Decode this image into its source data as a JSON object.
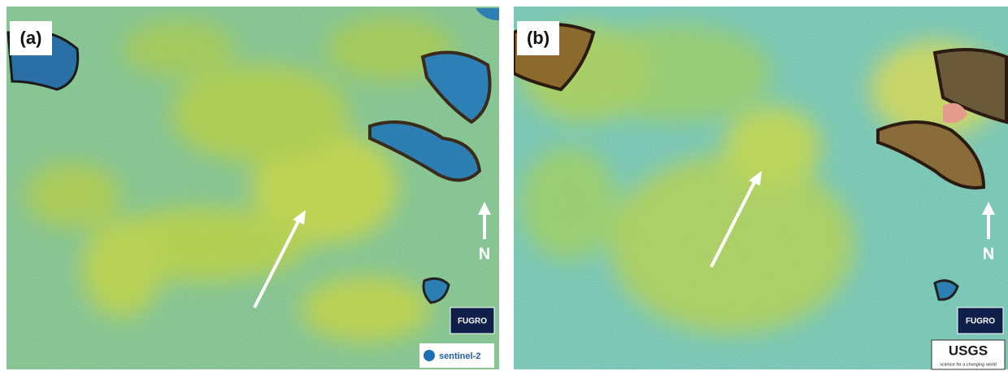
{
  "panels": [
    {
      "label": "(a)",
      "north": "N",
      "logos": [
        "FUGRO",
        "sentinel-2"
      ]
    },
    {
      "label": "(b)",
      "north": "N",
      "logos": [
        "FUGRO",
        "USGS",
        "science for a changing world"
      ]
    }
  ]
}
